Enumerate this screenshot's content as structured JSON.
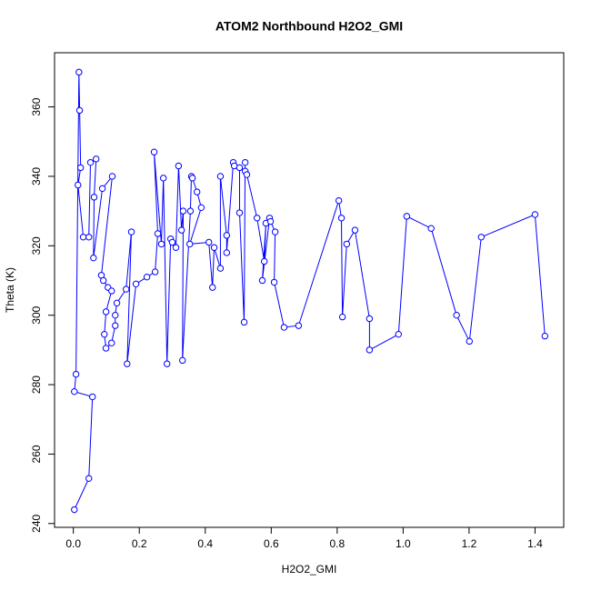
{
  "chart_data": {
    "type": "scatter",
    "mode": "points-and-lines",
    "title": "ATOM2 Northbound H2O2_GMI",
    "x_label": "H2O2_GMI",
    "y_label": "Theta (K)",
    "xlim": [
      -0.057,
      1.487
    ],
    "ylim": [
      238.9,
      375.6
    ],
    "xticks": [
      {
        "value": 0,
        "label": "0.0"
      },
      0.2,
      0.4,
      0.6,
      0.8,
      {
        "value": 1,
        "label": "1.0"
      },
      1.2,
      1.4
    ],
    "yticks": [
      240,
      260,
      280,
      300,
      320,
      340,
      360
    ],
    "grid": false,
    "series": [
      {
        "color": "#0000ff",
        "x": [
          0.003,
          0.047,
          0.058,
          0.003,
          0.008,
          0.017,
          0.019,
          0.022,
          0.014,
          0.03,
          0.047,
          0.052,
          0.069,
          0.063,
          0.061,
          0.088,
          0.118,
          0.085,
          0.091,
          0.105,
          0.116,
          0.099,
          0.094,
          0.099,
          0.116,
          0.127,
          0.127,
          0.132,
          0.16,
          0.176,
          0.163,
          0.19,
          0.223,
          0.248,
          0.256,
          0.245,
          0.267,
          0.273,
          0.284,
          0.295,
          0.3,
          0.311,
          0.319,
          0.328,
          0.333,
          0.331,
          0.355,
          0.358,
          0.361,
          0.375,
          0.388,
          0.353,
          0.411,
          0.422,
          0.427,
          0.446,
          0.446,
          0.465,
          0.465,
          0.485,
          0.488,
          0.504,
          0.504,
          0.518,
          0.521,
          0.521,
          0.526,
          0.557,
          0.579,
          0.584,
          0.573,
          0.595,
          0.598,
          0.612,
          0.609,
          0.639,
          0.683,
          0.805,
          0.813,
          0.816,
          0.829,
          0.854,
          0.898,
          0.898,
          0.986,
          1.011,
          1.085,
          1.162,
          1.201,
          1.237,
          1.4,
          1.43
        ],
        "values": [
          244,
          253,
          276.5,
          278,
          283,
          370,
          359,
          342.5,
          337.5,
          322.5,
          322.5,
          344,
          345,
          334,
          316.5,
          336.5,
          340,
          311.5,
          310,
          308,
          307,
          301,
          294.5,
          290.5,
          292,
          297,
          300,
          303.5,
          307.5,
          324,
          286,
          309,
          311,
          312.5,
          323.5,
          347,
          320.5,
          339.5,
          286,
          322,
          321,
          319.5,
          343,
          324.5,
          330,
          287,
          330,
          340,
          339.5,
          335.5,
          331,
          320.5,
          321,
          308,
          319.5,
          313.5,
          340,
          323,
          318,
          344,
          343,
          342.5,
          329.5,
          298,
          344,
          341.5,
          340.5,
          328,
          315.5,
          326.5,
          310,
          328,
          327,
          324,
          309.5,
          296.5,
          297,
          333,
          328,
          299.5,
          320.5,
          324.5,
          299,
          290,
          294.5,
          328.5,
          325,
          300,
          292.5,
          322.5,
          329,
          294
        ]
      }
    ]
  }
}
